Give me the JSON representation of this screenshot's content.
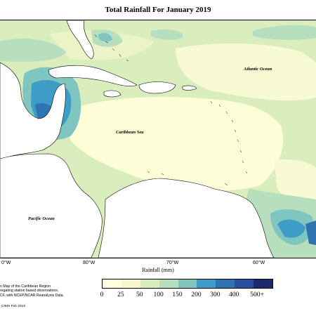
{
  "title": "Total Rainfall For January 2019",
  "map": {
    "ocean_labels": {
      "atlantic": "Atlantic Ocean",
      "caribbean": "Caribbean Sea",
      "pacific": "Pacific Ocean"
    },
    "longitude_ticks": [
      "0°W",
      "80°W",
      "70°W",
      "60°W"
    ],
    "rainfall_bins_mm": [
      "0-25",
      "25-50",
      "50-100",
      "100-150",
      "150-200",
      "200-300",
      "300-400",
      "400-500",
      "500+"
    ]
  },
  "axis_label": "Rainfall (mm)",
  "legend": {
    "colors": [
      "#ffffe0",
      "#f5f8cf",
      "#daedbc",
      "#b7dfbd",
      "#7fc6c0",
      "#3d9dc6",
      "#2f73b3",
      "#2b4fa0",
      "#1c2a6b"
    ],
    "labels": [
      "0",
      "25",
      "50",
      "100",
      "150",
      "200",
      "300",
      "400",
      "500+"
    ]
  },
  "note": {
    "line1": "n Map of the Caribbean Region",
    "line2": "regating station based observations,",
    "line3": "CF, with NCEP/NCAR Reanalysis Data."
  },
  "credit": "CIMH Feb 2019"
}
